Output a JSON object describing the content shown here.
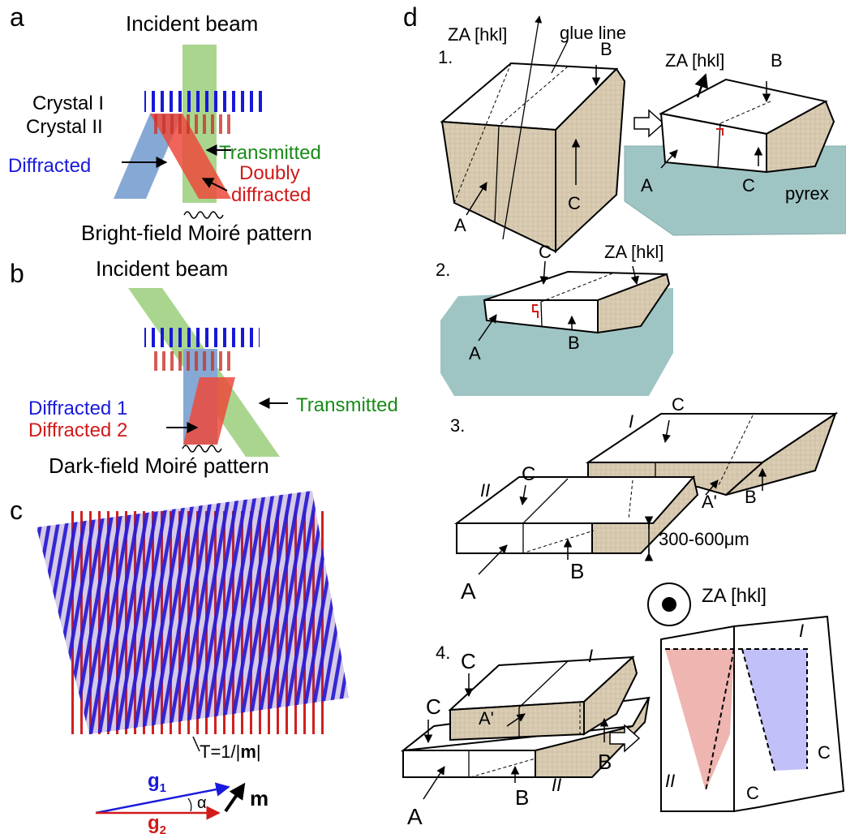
{
  "panel_a": {
    "letter": "a",
    "incident": "Incident beam",
    "crystal1": "Crystal I",
    "crystal2": "Crystal II",
    "diffracted": "Diffracted",
    "transmitted": "Transmitted",
    "doubly1": "Doubly",
    "doubly2": "diffracted",
    "moire": "Bright-field Moiré pattern"
  },
  "panel_b": {
    "letter": "b",
    "incident": "Incident beam",
    "diffracted1": "Diffracted 1",
    "diffracted2": "Diffracted 2",
    "transmitted": "Transmitted",
    "moire": "Dark-field Moiré pattern"
  },
  "panel_c": {
    "letter": "c",
    "period_prefix": "T=1/|",
    "period_m": "m",
    "period_suffix": "|",
    "g1": "g",
    "g1_sub": "1",
    "g2": "g",
    "g2_sub": "2",
    "alpha": "α",
    "m": "m"
  },
  "panel_d": {
    "letter": "d",
    "step1": "1.",
    "step2": "2.",
    "step3": "3.",
    "step4": "4.",
    "za": "ZA [hkl]",
    "glue": "glue line",
    "A": "A",
    "A_prime": "A'",
    "B": "B",
    "C": "C",
    "pyrex": "pyrex",
    "thickness": "300-600μm",
    "roman1": "I",
    "roman2": "II"
  },
  "colors": {
    "blue": "#1a1adc",
    "red": "#d11a1a",
    "green": "#1a8a1a",
    "beam_green": "#a9d58f",
    "beam_blue": "#86a8d4",
    "beam_red": "#ec4a3c",
    "pyrex": "#9fc4c4",
    "tan": "#d9ccb3"
  }
}
